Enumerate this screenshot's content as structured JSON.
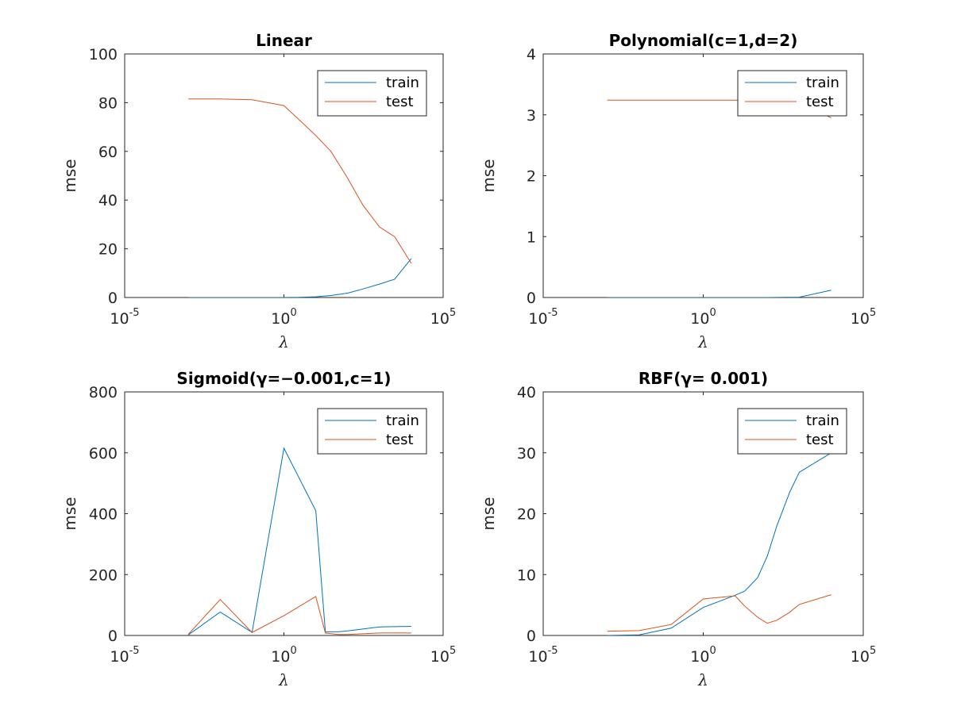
{
  "colors": {
    "train": "#0072BD",
    "test": "#D95319"
  },
  "chart_data": [
    {
      "type": "line",
      "title": "Linear",
      "xlabel": "λ",
      "ylabel": "mse",
      "xscale": "log",
      "xlim": [
        1e-05,
        100000
      ],
      "ylim": [
        0,
        100
      ],
      "xticks": [
        {
          "base": "10",
          "exp": "-5"
        },
        {
          "base": "10",
          "exp": "0"
        },
        {
          "base": "10",
          "exp": "5"
        }
      ],
      "yticks": [
        "0",
        "20",
        "40",
        "60",
        "80",
        "100"
      ],
      "legend": "top-right",
      "series": [
        {
          "name": "train",
          "x": [
            0.001,
            0.01,
            0.1,
            1,
            3,
            10,
            30,
            100,
            300,
            1000,
            3000,
            10000
          ],
          "y": [
            0,
            0,
            0,
            0,
            0.05,
            0.3,
            0.8,
            1.8,
            3.5,
            5.5,
            7.5,
            16
          ]
        },
        {
          "name": "test",
          "x": [
            0.001,
            0.01,
            0.1,
            1,
            3,
            10,
            30,
            100,
            300,
            1000,
            3000,
            10000
          ],
          "y": [
            81.5,
            81.5,
            81.2,
            78.8,
            73,
            66.5,
            60,
            49,
            38,
            29,
            25,
            14
          ]
        }
      ]
    },
    {
      "type": "line",
      "title": "Polynomial(c=1,d=2)",
      "xlabel": "λ",
      "ylabel": "mse",
      "xscale": "log",
      "xlim": [
        1e-05,
        100000
      ],
      "ylim": [
        0,
        4
      ],
      "xticks": [
        {
          "base": "10",
          "exp": "-5"
        },
        {
          "base": "10",
          "exp": "0"
        },
        {
          "base": "10",
          "exp": "5"
        }
      ],
      "yticks": [
        "0",
        "1",
        "2",
        "3",
        "4"
      ],
      "legend": "top-right",
      "series": [
        {
          "name": "train",
          "x": [
            0.001,
            0.01,
            0.1,
            1,
            10,
            100,
            1000,
            10000
          ],
          "y": [
            0,
            0,
            0,
            0,
            0,
            0,
            0.005,
            0.12
          ]
        },
        {
          "name": "test",
          "x": [
            0.001,
            0.01,
            0.1,
            1,
            10,
            100,
            1000,
            10000
          ],
          "y": [
            3.24,
            3.24,
            3.24,
            3.24,
            3.24,
            3.23,
            3.2,
            2.95
          ]
        }
      ]
    },
    {
      "type": "line",
      "title": "Sigmoid(γ=−0.001,c=1)",
      "xlabel": "λ",
      "ylabel": "mse",
      "xscale": "log",
      "xlim": [
        1e-05,
        100000
      ],
      "ylim": [
        0,
        800
      ],
      "xticks": [
        {
          "base": "10",
          "exp": "-5"
        },
        {
          "base": "10",
          "exp": "0"
        },
        {
          "base": "10",
          "exp": "5"
        }
      ],
      "yticks": [
        "0",
        "200",
        "400",
        "600",
        "800"
      ],
      "legend": "top-right",
      "series": [
        {
          "name": "train",
          "x": [
            0.001,
            0.01,
            0.1,
            1,
            10,
            20,
            50,
            100,
            1000,
            10000
          ],
          "y": [
            2,
            77,
            10,
            615,
            410,
            12,
            12,
            15,
            28,
            30
          ]
        },
        {
          "name": "test",
          "x": [
            0.001,
            0.01,
            0.1,
            1,
            10,
            20,
            50,
            100,
            1000,
            10000
          ],
          "y": [
            4,
            118,
            10,
            65,
            128,
            8,
            3,
            3,
            8,
            8
          ]
        }
      ]
    },
    {
      "type": "line",
      "title": "RBF(γ= 0.001)",
      "xlabel": "λ",
      "ylabel": "mse",
      "xscale": "log",
      "xlim": [
        1e-05,
        100000
      ],
      "ylim": [
        0,
        40
      ],
      "xticks": [
        {
          "base": "10",
          "exp": "-5"
        },
        {
          "base": "10",
          "exp": "0"
        },
        {
          "base": "10",
          "exp": "5"
        }
      ],
      "yticks": [
        "0",
        "10",
        "20",
        "30",
        "40"
      ],
      "legend": "top-right",
      "series": [
        {
          "name": "train",
          "x": [
            0.001,
            0.01,
            0.1,
            1,
            10,
            20,
            50,
            100,
            200,
            500,
            1000,
            10000
          ],
          "y": [
            0,
            0.1,
            1.2,
            4.6,
            6.6,
            7.3,
            9.5,
            13,
            18,
            23.5,
            26.8,
            30
          ]
        },
        {
          "name": "test",
          "x": [
            0.001,
            0.01,
            0.1,
            1,
            10,
            20,
            50,
            100,
            200,
            500,
            1000,
            10000
          ],
          "y": [
            0.7,
            0.8,
            1.8,
            6,
            6.5,
            4.8,
            3,
            2,
            2.5,
            3.8,
            5.1,
            6.7
          ]
        }
      ]
    }
  ]
}
